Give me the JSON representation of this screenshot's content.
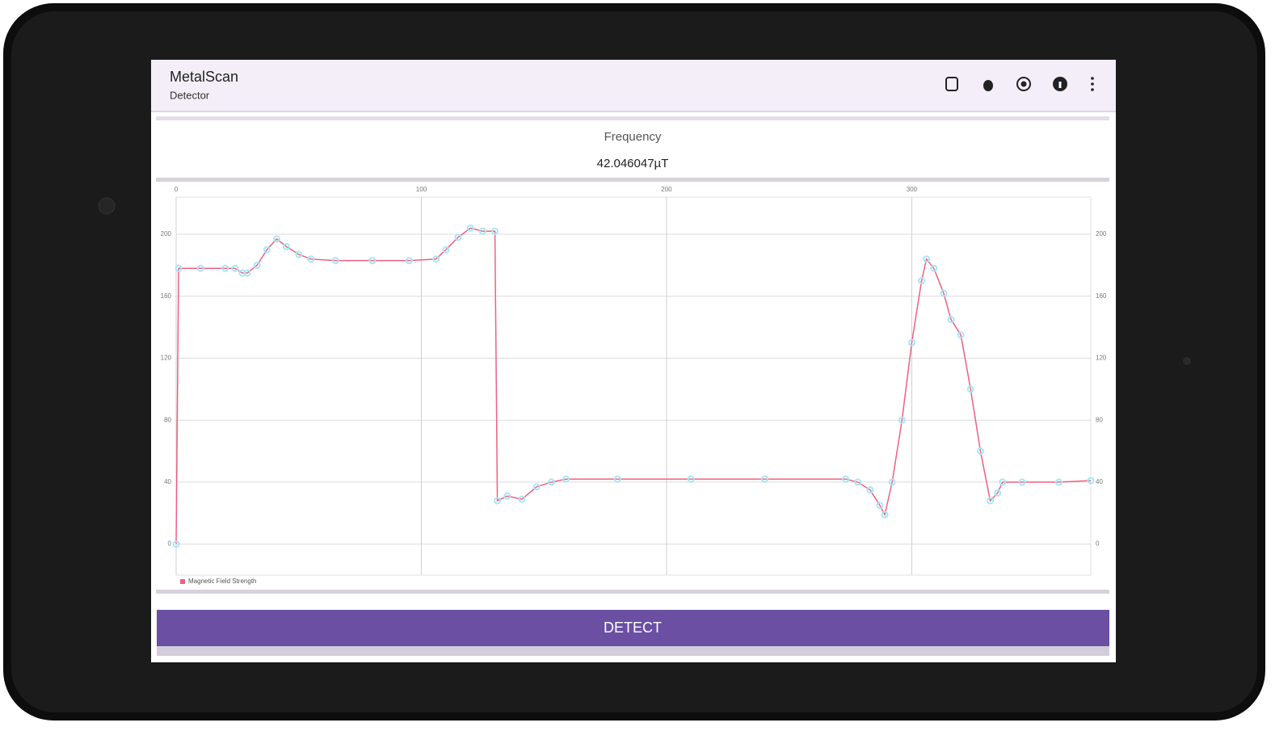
{
  "app_bar": {
    "title": "MetalScan",
    "subtitle": "Detector"
  },
  "reading": {
    "label": "Frequency",
    "value": "42.046047µT"
  },
  "button": {
    "label": "DETECT"
  },
  "chart_data": {
    "type": "line",
    "x": [
      0,
      1,
      10,
      20,
      24,
      27,
      29,
      33,
      37,
      41,
      45,
      50,
      55,
      65,
      80,
      95,
      106,
      110,
      115,
      120,
      125,
      130,
      131,
      135,
      141,
      147,
      153,
      159,
      180,
      210,
      240,
      273,
      278,
      283,
      287,
      289,
      292,
      296,
      300,
      304,
      306,
      309,
      313,
      316,
      320,
      324,
      328,
      332,
      335,
      337,
      345,
      360,
      373
    ],
    "series": [
      {
        "name": "Magnetic Field Strength",
        "color": "#f0607f",
        "marker_color": "#a8e6f5",
        "values": [
          0,
          178,
          178,
          178,
          178,
          175,
          175,
          180,
          190,
          197,
          192,
          187,
          184,
          183,
          183,
          183,
          184,
          190,
          198,
          204,
          202,
          202,
          28,
          31,
          29,
          37,
          40,
          42,
          42,
          42,
          42,
          42,
          40,
          35,
          25,
          19,
          40,
          80,
          130,
          170,
          184,
          178,
          162,
          145,
          135,
          100,
          60,
          28,
          33,
          40,
          40,
          40,
          41
        ]
      }
    ],
    "xlim": [
      0,
      373
    ],
    "ylim": [
      -20,
      224
    ],
    "xticks": [
      0,
      100,
      200,
      300
    ],
    "yticks": [
      0,
      40,
      80,
      120,
      160,
      200
    ],
    "grid": true,
    "legend": "bottom-left"
  }
}
